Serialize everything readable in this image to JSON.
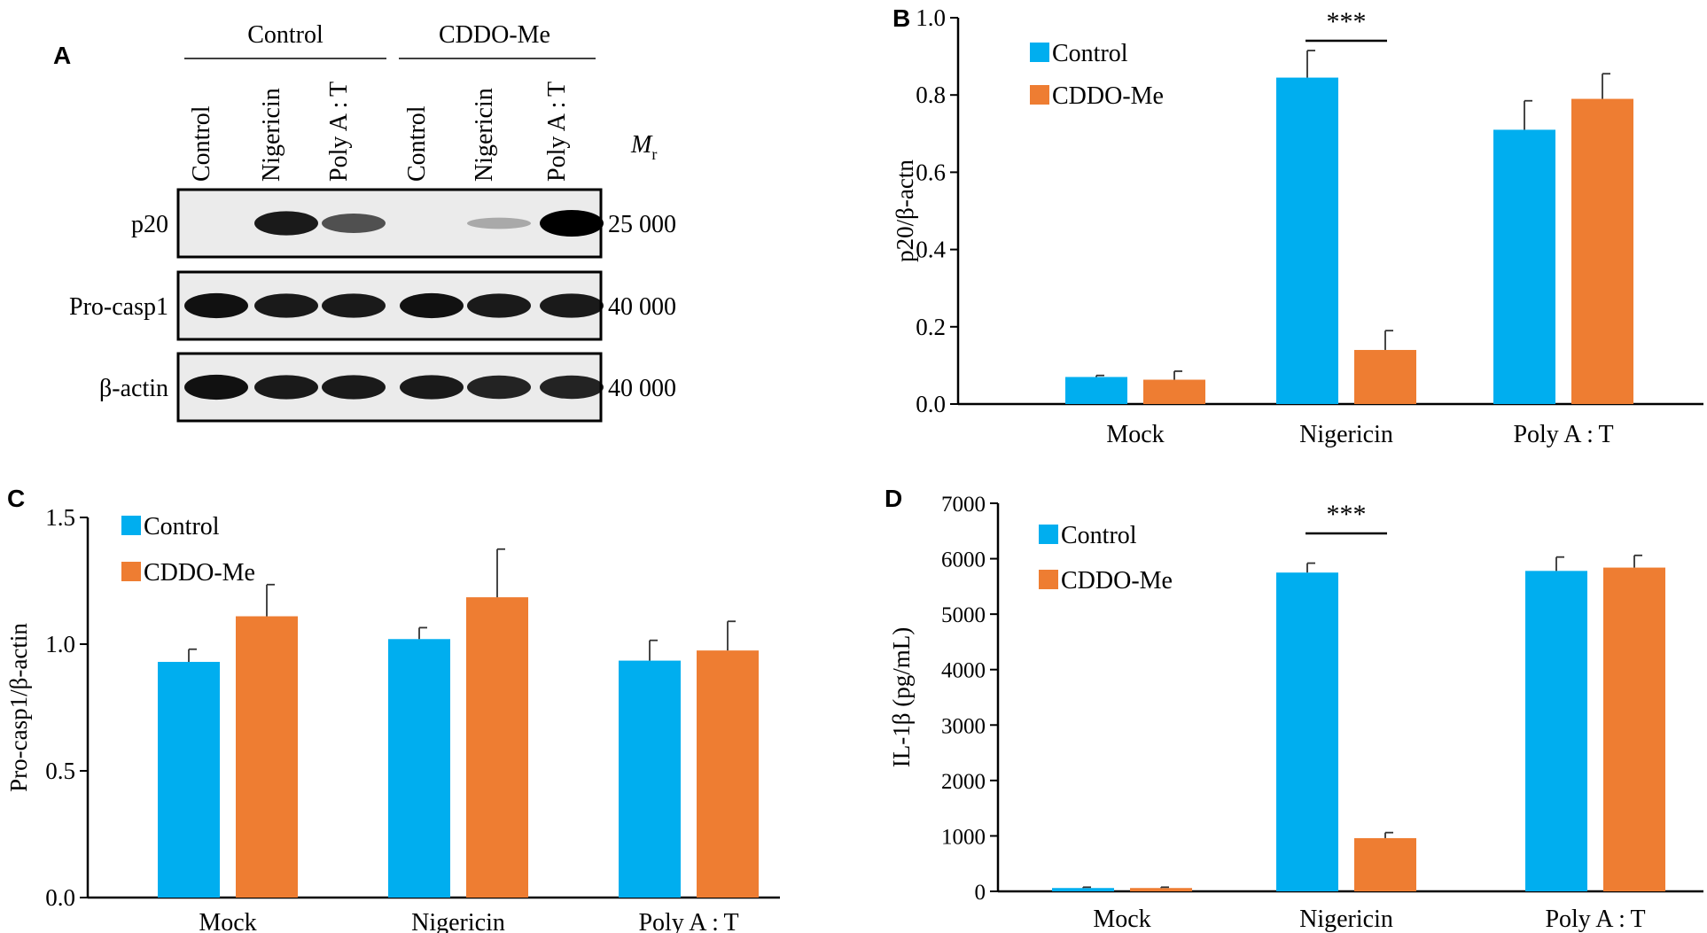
{
  "colors": {
    "control": "#00AEEF",
    "cddo": "#EE7D32",
    "axis": "#000000",
    "blot_bg": "#ebebeb"
  },
  "panel_labels": {
    "a": "A",
    "b": "B",
    "c": "C",
    "d": "D"
  },
  "western_blot": {
    "groups": [
      "Control",
      "CDDO-Me"
    ],
    "lanes": [
      "Control",
      "Nigericin",
      "Poly A : T",
      "Control",
      "Nigericin",
      "Poly A : T"
    ],
    "mr_label": "M",
    "mr_sub": "r",
    "rows": [
      {
        "name": "p20",
        "mr": "25 000",
        "intensities": [
          0.0,
          0.85,
          0.55,
          0.0,
          0.04,
          1.0
        ]
      },
      {
        "name": "Pro-casp1",
        "mr": "40 000",
        "intensities": [
          0.9,
          0.85,
          0.85,
          0.9,
          0.85,
          0.85
        ]
      },
      {
        "name": "β-actin",
        "mr": "40 000",
        "intensities": [
          0.9,
          0.85,
          0.85,
          0.85,
          0.8,
          0.8
        ]
      }
    ]
  },
  "chart_data": [
    {
      "panel": "B",
      "type": "bar",
      "categories": [
        "Mock",
        "Nigericin",
        "Poly A : T"
      ],
      "series": [
        {
          "name": "Control",
          "values": [
            0.07,
            0.845,
            0.71
          ],
          "errors": [
            0.004,
            0.07,
            0.075
          ]
        },
        {
          "name": "CDDO-Me",
          "values": [
            0.063,
            0.14,
            0.79
          ],
          "errors": [
            0.022,
            0.05,
            0.065
          ]
        }
      ],
      "ylabel": "p20/β-actn",
      "ylim": [
        0,
        1.0
      ],
      "yticks": [
        "0.0",
        "0.2",
        "0.4",
        "0.6",
        "0.8",
        "1.0"
      ],
      "significance": {
        "category": "Nigericin",
        "label": "***"
      },
      "legend_position": "top-left",
      "grid": false
    },
    {
      "panel": "C",
      "type": "bar",
      "categories": [
        "Mock",
        "Nigericin",
        "Poly A : T"
      ],
      "series": [
        {
          "name": "Control",
          "values": [
            0.93,
            1.02,
            0.935
          ],
          "errors": [
            0.05,
            0.045,
            0.08
          ]
        },
        {
          "name": "CDDO-Me",
          "values": [
            1.11,
            1.185,
            0.975
          ],
          "errors": [
            0.125,
            0.19,
            0.115
          ]
        }
      ],
      "ylabel": "Pro-casp1/β-actin",
      "ylim": [
        0,
        1.5
      ],
      "yticks": [
        "0.0",
        "0.5",
        "1.0",
        "1.5"
      ],
      "legend_position": "top-left",
      "grid": false
    },
    {
      "panel": "D",
      "type": "bar",
      "categories": [
        "Mock",
        "Nigericin",
        "Poly A : T"
      ],
      "series": [
        {
          "name": "Control",
          "values": [
            60,
            5750,
            5780
          ],
          "errors": [
            15,
            170,
            250
          ]
        },
        {
          "name": "CDDO-Me",
          "values": [
            60,
            960,
            5840
          ],
          "errors": [
            15,
            100,
            220
          ]
        }
      ],
      "ylabel": "IL-1β (pg/mL)",
      "ylim": [
        0,
        7000
      ],
      "yticks": [
        "0",
        "1000",
        "2000",
        "3000",
        "4000",
        "5000",
        "6000",
        "7000"
      ],
      "significance": {
        "category": "Nigericin",
        "label": "***"
      },
      "legend_position": "top-left",
      "grid": false
    }
  ]
}
